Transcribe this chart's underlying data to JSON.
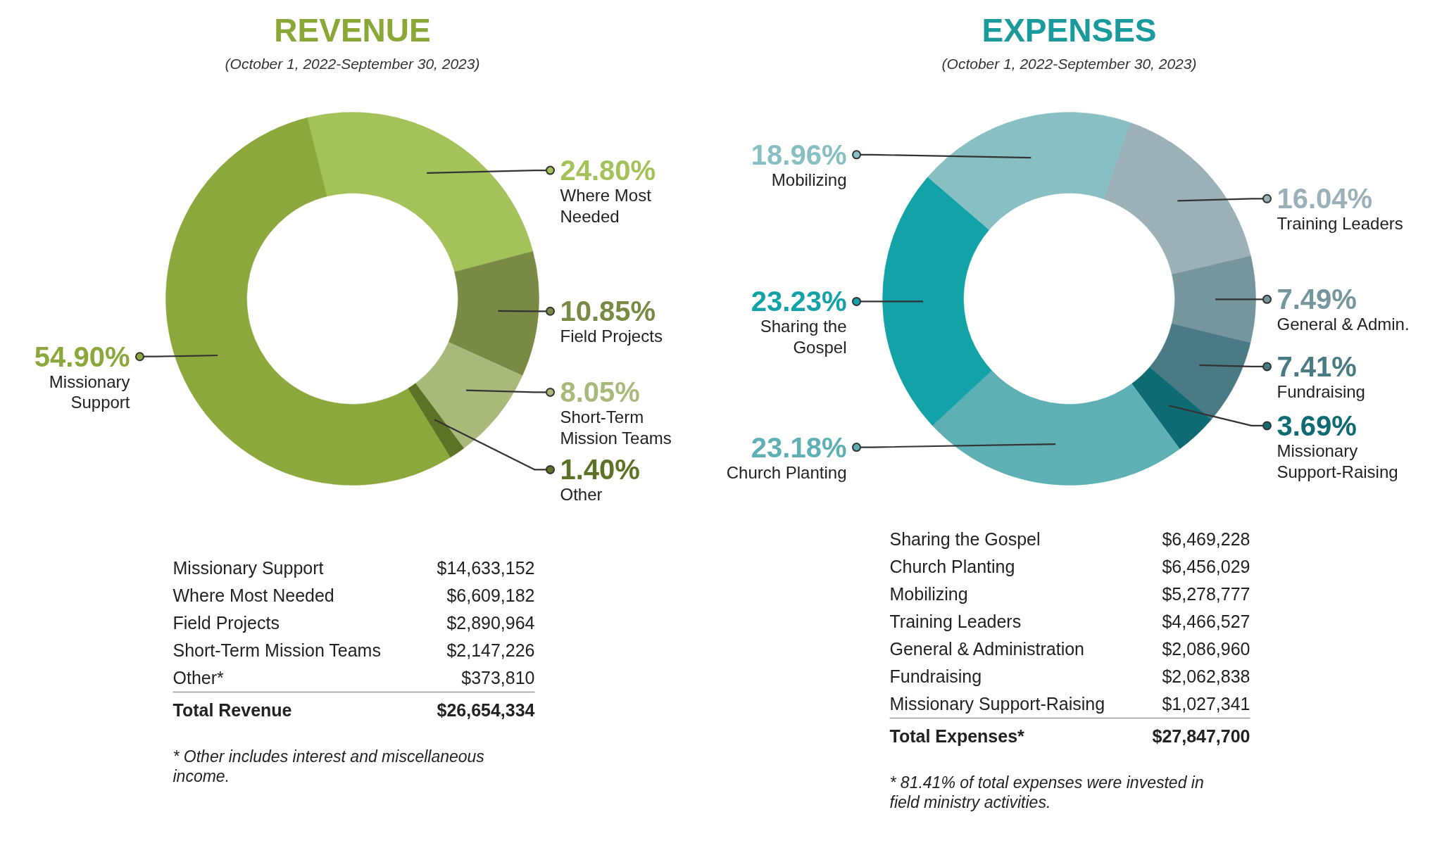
{
  "chart_data": [
    {
      "type": "donut",
      "title": "REVENUE",
      "subtitle": "(October 1, 2022-September 30, 2023)",
      "categories": [
        "Where Most Needed",
        "Field Projects",
        "Short-Term Mission Teams",
        "Other",
        "Missionary Support"
      ],
      "values": [
        24.8,
        10.85,
        8.05,
        1.4,
        54.9
      ],
      "value_labels": [
        "24.80%",
        "10.85%",
        "8.05%",
        "1.40%",
        "54.90%"
      ],
      "colors": [
        "#a3c35a",
        "#788a43",
        "#a9b97a",
        "#5c7326",
        "#8ba83c"
      ],
      "legend": "right",
      "annotations": [
        "Missionary Support",
        "$14,633,152",
        "Where Most Needed",
        "$6,609,182",
        "Field Projects",
        "$2,890,964",
        "Short-Term Mission Teams",
        "$2,147,226",
        "Other*",
        "$373,810",
        "Total Revenue",
        "$26,654,334",
        "* Other includes interest and miscellaneous income."
      ]
    },
    {
      "type": "donut",
      "title": "EXPENSES",
      "subtitle": "(October 1, 2022-September 30, 2023)",
      "categories": [
        "Training Leaders",
        "General & Admin.",
        "Fundraising",
        "Missionary Support-Raising",
        "Church Planting",
        "Sharing the Gospel",
        "Mobilizing"
      ],
      "values": [
        16.04,
        7.49,
        7.41,
        3.69,
        23.18,
        23.23,
        18.96
      ],
      "value_labels": [
        "16.04%",
        "7.49%",
        "7.41%",
        "3.69%",
        "23.18%",
        "23.23%",
        "18.96%"
      ],
      "colors": [
        "#9bb1b7",
        "#74969c",
        "#4a7b84",
        "#0e6b73",
        "#5fb0b4",
        "#13a2a8",
        "#88bfc3"
      ],
      "legend": "right",
      "annotations": [
        "Sharing the Gospel",
        "$6,469,228",
        "Church Planting",
        "$6,456,029",
        "Mobilizing",
        "$5,278,777",
        "Training Leaders",
        "$4,466,527",
        "General & Administration",
        "$2,086,960",
        "Fundraising",
        "$2,062,838",
        "Missionary Support-Raising",
        "$1,027,341",
        "Total Expenses*",
        "$27,847,700",
        "* 81.41% of total expenses were invested in field ministry activities."
      ]
    }
  ]
}
